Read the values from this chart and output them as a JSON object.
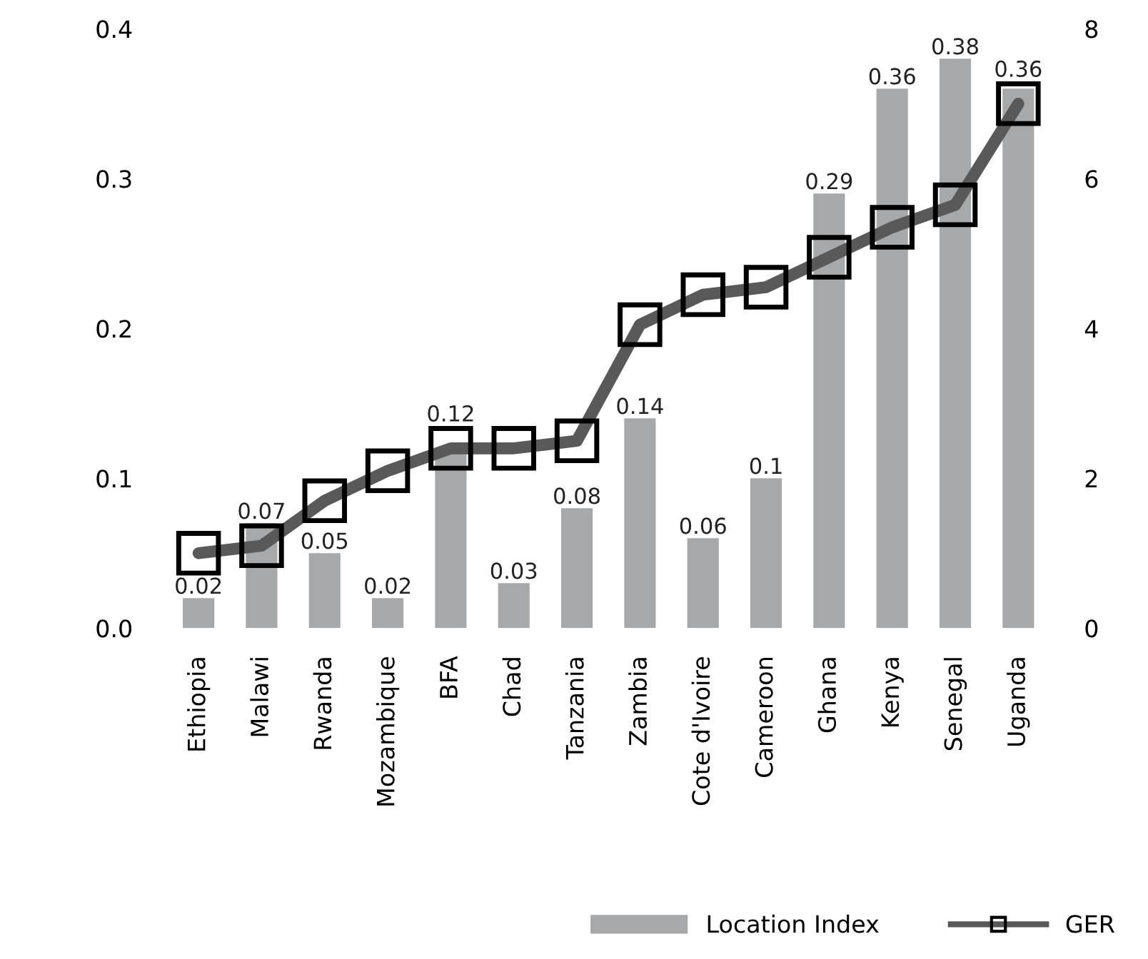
{
  "chart_data": {
    "type": "bar",
    "categories": [
      "Ethiopia",
      "Malawi",
      "Rwanda",
      "Mozambique",
      "BFA",
      "Chad",
      "Tanzania",
      "Zambia",
      "Cote d'Ivoire",
      "Cameroon",
      "Ghana",
      "Kenya",
      "Senegal",
      "Uganda"
    ],
    "series": [
      {
        "name": "Location Index",
        "color": "#a7a8aa",
        "values": [
          0.02,
          0.07,
          0.05,
          0.02,
          0.12,
          0.03,
          0.08,
          0.14,
          0.06,
          0.1,
          0.29,
          0.36,
          0.38,
          0.36
        ],
        "value_labels": [
          "0.02",
          "0.07",
          "0.05",
          "0.02",
          "0.12",
          "0.03",
          "0.08",
          "0.14",
          "0.06",
          "0.1",
          "0.29",
          "0.36",
          "0.38",
          "0.36"
        ]
      },
      {
        "name": "GER",
        "type": "line",
        "axis": "y2",
        "color": "#595959",
        "marker": "square",
        "values": [
          1.0,
          1.1,
          1.7,
          2.1,
          2.4,
          2.4,
          2.5,
          4.05,
          4.45,
          4.55,
          4.95,
          5.35,
          5.65,
          7.0
        ]
      }
    ],
    "ylim": [
      0,
      0.4
    ],
    "yticks": [
      {
        "value": 0,
        "label": "0.0"
      },
      0.1,
      0.2,
      0.3,
      0.4
    ],
    "y2lim": [
      0,
      8
    ],
    "y2ticks": [
      0,
      2,
      4,
      6,
      8
    ],
    "grid": false,
    "legend": "bottom right"
  }
}
